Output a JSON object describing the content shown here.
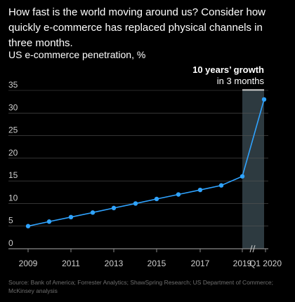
{
  "headline": "How fast is the world moving around us? Consider how quickly e-commerce has replaced physical channels in three months.",
  "annotation": {
    "bold": "10 years’ growth",
    "sub": "in 3 months"
  },
  "source": "Source: Bank of America; Forrester Analytics; ShawSpring Research; US Department of Commerce; McKinsey analysis",
  "colors": {
    "line": "#2fa3ff",
    "grid": "#555555",
    "highlight": "#2d3a40",
    "text": "#ffffff",
    "source": "#6f6f6f"
  },
  "chart_data": {
    "type": "line",
    "title": "US e-commerce penetration, %",
    "xlabel": "",
    "ylabel": "",
    "ylim": [
      0,
      35
    ],
    "yticks": [
      0,
      5,
      10,
      15,
      20,
      25,
      30,
      35
    ],
    "grid": true,
    "x_tick_labels": [
      "2009",
      "2011",
      "2013",
      "2015",
      "2017",
      "2019",
      "Q1 2020"
    ],
    "axis_break": "between 2019 and Q1 2020",
    "highlight_region": "2019 to Q1 2020",
    "series": [
      {
        "x": [
          "2009",
          "2010",
          "2011",
          "2012",
          "2013",
          "2014",
          "2015",
          "2016",
          "2017",
          "2018",
          "2019",
          "Q1 2020"
        ],
        "values": [
          5,
          6,
          7,
          8,
          9,
          10,
          11,
          12,
          13,
          14,
          16,
          33
        ]
      }
    ]
  }
}
